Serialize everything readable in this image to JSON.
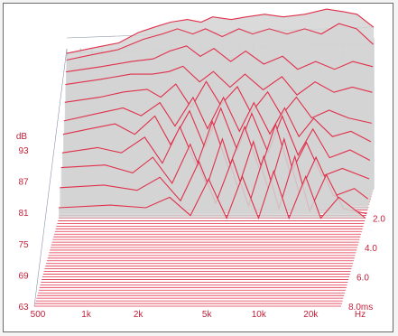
{
  "chart_data": {
    "type": "waterfall",
    "x_axis": {
      "unit": "Hz",
      "scale": "log",
      "range": [
        500,
        30000
      ],
      "tick_labels": [
        "500",
        "1k",
        "2k",
        "5k",
        "10k",
        "20k"
      ],
      "tick_values": [
        500,
        1000,
        2000,
        5000,
        10000,
        20000
      ]
    },
    "y_axis": {
      "unit": "dB",
      "range": [
        63,
        98
      ],
      "tick_labels": [
        "93",
        "87",
        "81",
        "75",
        "69",
        "63"
      ],
      "tick_values": [
        93,
        87,
        81,
        75,
        69,
        63
      ]
    },
    "z_axis": {
      "unit": "ms",
      "range": [
        0,
        8.0
      ],
      "tick_labels": [
        "2.0",
        "4.0",
        "6.0",
        "8.0ms"
      ],
      "tick_values": [
        2.0,
        4.0,
        6.0,
        8.0
      ]
    },
    "grid": true,
    "line_color": "#e0304a",
    "fill_color": "#d4d4d4",
    "series": [
      {
        "time_ms": 0.0,
        "values": [
          [
            500,
            89
          ],
          [
            700,
            90
          ],
          [
            1000,
            91
          ],
          [
            1300,
            93
          ],
          [
            1600,
            94
          ],
          [
            2000,
            95
          ],
          [
            2500,
            95.5
          ],
          [
            3000,
            95
          ],
          [
            3500,
            96
          ],
          [
            4500,
            95.5
          ],
          [
            5500,
            96
          ],
          [
            7000,
            96.5
          ],
          [
            9000,
            96
          ],
          [
            12000,
            96.5
          ],
          [
            16000,
            97.5
          ],
          [
            20000,
            97
          ],
          [
            24000,
            96.5
          ],
          [
            30000,
            94
          ]
        ]
      },
      {
        "time_ms": 0.1,
        "values": [
          [
            500,
            88
          ],
          [
            700,
            89
          ],
          [
            1000,
            90
          ],
          [
            1400,
            92
          ],
          [
            1800,
            93
          ],
          [
            2200,
            94
          ],
          [
            2700,
            93
          ],
          [
            3200,
            94
          ],
          [
            4000,
            92.5
          ],
          [
            5000,
            94
          ],
          [
            6000,
            93
          ],
          [
            7500,
            94
          ],
          [
            9500,
            93
          ],
          [
            12000,
            94
          ],
          [
            15000,
            93
          ],
          [
            19000,
            95
          ],
          [
            24000,
            94
          ],
          [
            30000,
            91
          ]
        ]
      },
      {
        "time_ms": 0.2,
        "values": [
          [
            500,
            86
          ],
          [
            800,
            87
          ],
          [
            1200,
            88
          ],
          [
            1600,
            88.5
          ],
          [
            2000,
            90
          ],
          [
            2500,
            91
          ],
          [
            3000,
            89
          ],
          [
            3600,
            90.5
          ],
          [
            4500,
            88
          ],
          [
            5500,
            90
          ],
          [
            7000,
            87.5
          ],
          [
            9000,
            89
          ],
          [
            11000,
            86.5
          ],
          [
            14000,
            88
          ],
          [
            18000,
            86.5
          ],
          [
            23000,
            88
          ],
          [
            30000,
            87
          ]
        ]
      },
      {
        "time_ms": 0.35,
        "values": [
          [
            500,
            84
          ],
          [
            800,
            85
          ],
          [
            1200,
            86
          ],
          [
            1600,
            86
          ],
          [
            2000,
            86.5
          ],
          [
            2400,
            87.5
          ],
          [
            3000,
            84.5
          ],
          [
            3600,
            86.5
          ],
          [
            4500,
            83.5
          ],
          [
            5500,
            86
          ],
          [
            7000,
            83
          ],
          [
            9000,
            85.5
          ],
          [
            11000,
            82
          ],
          [
            14000,
            84.5
          ],
          [
            18000,
            82.5
          ],
          [
            23000,
            83.5
          ],
          [
            30000,
            82.5
          ]
        ]
      },
      {
        "time_ms": 0.5,
        "values": [
          [
            500,
            81
          ],
          [
            800,
            82
          ],
          [
            1100,
            83
          ],
          [
            1500,
            83.5
          ],
          [
            1800,
            82
          ],
          [
            2200,
            84.5
          ],
          [
            2700,
            80
          ],
          [
            3300,
            85
          ],
          [
            4000,
            80.5
          ],
          [
            5000,
            84
          ],
          [
            6000,
            79
          ],
          [
            7500,
            83
          ],
          [
            9000,
            78.5
          ],
          [
            11000,
            82
          ],
          [
            13500,
            78
          ],
          [
            17000,
            79.5
          ],
          [
            22000,
            78
          ],
          [
            30000,
            77
          ]
        ]
      },
      {
        "time_ms": 0.7,
        "values": [
          [
            500,
            78
          ],
          [
            800,
            79.5
          ],
          [
            1100,
            80.5
          ],
          [
            1400,
            79
          ],
          [
            1800,
            81.5
          ],
          [
            2200,
            77
          ],
          [
            2800,
            82.5
          ],
          [
            3400,
            76.5
          ],
          [
            4200,
            82.5
          ],
          [
            5200,
            76
          ],
          [
            6300,
            81.5
          ],
          [
            7800,
            75.5
          ],
          [
            9500,
            80.5
          ],
          [
            11500,
            75
          ],
          [
            14000,
            78.5
          ],
          [
            18000,
            75
          ],
          [
            23000,
            76
          ],
          [
            30000,
            74
          ]
        ]
      },
      {
        "time_ms": 0.9,
        "values": [
          [
            500,
            76
          ],
          [
            700,
            77
          ],
          [
            1000,
            78
          ],
          [
            1300,
            76
          ],
          [
            1700,
            79.5
          ],
          [
            2100,
            74
          ],
          [
            2700,
            80.5
          ],
          [
            3300,
            73.5
          ],
          [
            4100,
            81
          ],
          [
            5100,
            73
          ],
          [
            6200,
            80
          ],
          [
            7700,
            72.5
          ],
          [
            9300,
            79.5
          ],
          [
            11500,
            72
          ],
          [
            14000,
            77
          ],
          [
            17500,
            71.5
          ],
          [
            23000,
            73
          ],
          [
            30000,
            71
          ]
        ]
      },
      {
        "time_ms": 1.1,
        "values": [
          [
            500,
            73
          ],
          [
            800,
            74
          ],
          [
            1100,
            73
          ],
          [
            1500,
            76
          ],
          [
            1900,
            71
          ],
          [
            2400,
            78
          ],
          [
            3000,
            70.5
          ],
          [
            3700,
            79
          ],
          [
            4600,
            70
          ],
          [
            5700,
            78
          ],
          [
            7000,
            69.5
          ],
          [
            8600,
            78.5
          ],
          [
            10500,
            69
          ],
          [
            13000,
            75
          ],
          [
            16000,
            68.5
          ],
          [
            21000,
            70
          ],
          [
            30000,
            68
          ]
        ]
      },
      {
        "time_ms": 1.4,
        "values": [
          [
            500,
            71
          ],
          [
            900,
            71.5
          ],
          [
            1300,
            70
          ],
          [
            1700,
            73
          ],
          [
            2200,
            68
          ],
          [
            2800,
            75.5
          ],
          [
            3500,
            67.5
          ],
          [
            4300,
            76.5
          ],
          [
            5300,
            67
          ],
          [
            6500,
            76
          ],
          [
            8000,
            66.5
          ],
          [
            9800,
            76.5
          ],
          [
            12000,
            66
          ],
          [
            15000,
            73
          ],
          [
            19000,
            65.5
          ],
          [
            25000,
            67
          ],
          [
            30000,
            65
          ]
        ]
      },
      {
        "time_ms": 1.7,
        "values": [
          [
            500,
            68
          ],
          [
            900,
            68.5
          ],
          [
            1400,
            67.5
          ],
          [
            1900,
            70
          ],
          [
            2500,
            65.5
          ],
          [
            3200,
            73
          ],
          [
            4000,
            65
          ],
          [
            5000,
            73.5
          ],
          [
            6200,
            64.5
          ],
          [
            7600,
            74
          ],
          [
            9300,
            64
          ],
          [
            11500,
            74
          ],
          [
            14000,
            63.5
          ],
          [
            17500,
            70.5
          ],
          [
            22000,
            64
          ],
          [
            30000,
            63
          ]
        ]
      },
      {
        "time_ms": 2.0,
        "values": [
          [
            500,
            65
          ],
          [
            1000,
            65.5
          ],
          [
            1600,
            65
          ],
          [
            2200,
            67
          ],
          [
            2900,
            63.5
          ],
          [
            3700,
            70.5
          ],
          [
            4700,
            63
          ],
          [
            5800,
            71
          ],
          [
            7200,
            63
          ],
          [
            8800,
            72
          ],
          [
            10800,
            63
          ],
          [
            13500,
            71
          ],
          [
            16500,
            63
          ],
          [
            21000,
            67
          ],
          [
            30000,
            63
          ]
        ]
      }
    ]
  }
}
